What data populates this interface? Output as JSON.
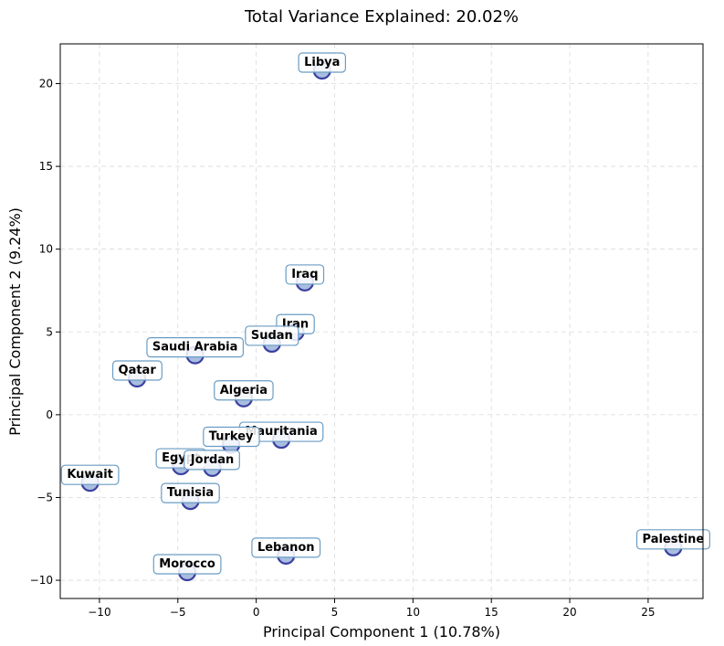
{
  "chart_data": {
    "type": "scatter",
    "title": "Total Variance Explained: 20.02%",
    "xlabel": "Principal Component 1 (10.78%)",
    "ylabel": "Principal Component 2 (9.24%)",
    "xlim": [
      -12.5,
      28.5
    ],
    "ylim": [
      -11.1,
      22.4
    ],
    "xticks": [
      -10,
      -5,
      0,
      5,
      10,
      15,
      20,
      25
    ],
    "yticks": [
      -10,
      -5,
      0,
      5,
      10,
      15,
      20
    ],
    "grid": true,
    "points": [
      {
        "label": "Libya",
        "x": 4.2,
        "y": 20.8
      },
      {
        "label": "Iraq",
        "x": 3.1,
        "y": 8.0
      },
      {
        "label": "Iran",
        "x": 2.5,
        "y": 5.0
      },
      {
        "label": "Sudan",
        "x": 1.0,
        "y": 4.3
      },
      {
        "label": "Saudi Arabia",
        "x": -3.9,
        "y": 3.6
      },
      {
        "label": "Qatar",
        "x": -7.6,
        "y": 2.2
      },
      {
        "label": "Algeria",
        "x": -0.8,
        "y": 1.0
      },
      {
        "label": "Mauritania",
        "x": 1.6,
        "y": -1.5
      },
      {
        "label": "Turkey",
        "x": -1.6,
        "y": -1.8
      },
      {
        "label": "Egypt",
        "x": -4.8,
        "y": -3.1
      },
      {
        "label": "Jordan",
        "x": -2.8,
        "y": -3.2
      },
      {
        "label": "Kuwait",
        "x": -10.6,
        "y": -4.1
      },
      {
        "label": "Tunisia",
        "x": -4.2,
        "y": -5.2
      },
      {
        "label": "Lebanon",
        "x": 1.9,
        "y": -8.5
      },
      {
        "label": "Morocco",
        "x": -4.4,
        "y": -9.5
      },
      {
        "label": "Palestine",
        "x": 26.6,
        "y": -8.0
      }
    ]
  },
  "colors": {
    "point_fill": "#a8bde0",
    "point_stroke": "#3a3fa0",
    "label_box_stroke": "#6a9cc4",
    "grid": "#d9d9d9"
  }
}
